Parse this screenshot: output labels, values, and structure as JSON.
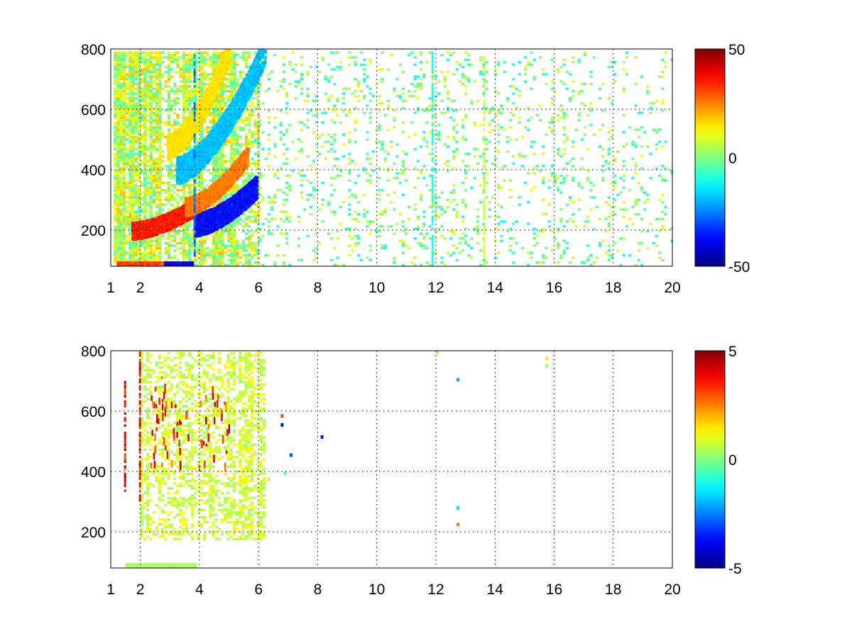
{
  "figure": {
    "background": "#ffffff"
  },
  "chart_data": [
    {
      "type": "heatmap",
      "title": "",
      "xlabel": "",
      "ylabel": "",
      "xlim": [
        1,
        20
      ],
      "ylim": [
        80,
        800
      ],
      "xticks": [
        1,
        2,
        4,
        6,
        8,
        10,
        12,
        14,
        16,
        18,
        20
      ],
      "xtick_labels": [
        "1",
        "2",
        "4",
        "6",
        "8",
        "10",
        "12",
        "14",
        "16",
        "18",
        "20"
      ],
      "yticks": [
        200,
        400,
        600,
        800
      ],
      "ytick_labels": [
        "200",
        "400",
        "600",
        "800"
      ],
      "grid": true,
      "colormap": "jet",
      "clim": [
        -50,
        50
      ],
      "colorbar": {
        "ticks": [
          -50,
          0,
          50
        ],
        "labels": [
          "-50",
          "0",
          "50"
        ],
        "placement": "right"
      },
      "features": [
        {
          "kind": "dense-field",
          "x": [
            1.1,
            6.0
          ],
          "y": [
            80,
            800
          ],
          "value": 6,
          "spread": 14,
          "density": 0.8
        },
        {
          "kind": "ridge-band",
          "x0": 1.7,
          "x1": 4.0,
          "y0": 200,
          "y1": 290,
          "width": 28,
          "value": 42
        },
        {
          "kind": "ridge-band",
          "x0": 3.8,
          "x1": 5.9,
          "y0": 220,
          "y1": 345,
          "width": 38,
          "value": -44
        },
        {
          "kind": "ridge-band",
          "x0": 3.5,
          "x1": 5.6,
          "y0": 280,
          "y1": 450,
          "width": 30,
          "value": 30
        },
        {
          "kind": "ridge-band",
          "x0": 3.2,
          "x1": 6.2,
          "y0": 400,
          "y1": 800,
          "width": 45,
          "value": -22
        },
        {
          "kind": "ridge-band",
          "x0": 2.9,
          "x1": 5.0,
          "y0": 480,
          "y1": 800,
          "width": 40,
          "value": 18
        },
        {
          "kind": "base-strip",
          "x": [
            1.2,
            3.8
          ],
          "y": [
            80,
            98
          ],
          "value": 35
        },
        {
          "kind": "base-strip",
          "x": [
            2.8,
            3.8
          ],
          "y": [
            80,
            98
          ],
          "value": -45
        },
        {
          "kind": "column",
          "x": 3.8,
          "y": [
            120,
            800
          ],
          "value": -30
        },
        {
          "kind": "column",
          "x": 11.85,
          "y": [
            80,
            800
          ],
          "value": -12
        },
        {
          "kind": "column",
          "x": 13.6,
          "y": [
            80,
            800
          ],
          "value": 10
        },
        {
          "kind": "sparse-field",
          "x": [
            6.0,
            20.0
          ],
          "y": [
            80,
            800
          ],
          "value": 0,
          "spread": 12,
          "density": 0.12
        }
      ]
    },
    {
      "type": "heatmap",
      "title": "",
      "xlabel": "",
      "ylabel": "",
      "xlim": [
        1,
        20
      ],
      "ylim": [
        80,
        800
      ],
      "xticks": [
        1,
        2,
        4,
        6,
        8,
        10,
        12,
        14,
        16,
        18,
        20
      ],
      "xtick_labels": [
        "1",
        "2",
        "4",
        "6",
        "8",
        "10",
        "12",
        "14",
        "16",
        "18",
        "20"
      ],
      "yticks": [
        200,
        400,
        600,
        800
      ],
      "ytick_labels": [
        "200",
        "400",
        "600",
        "800"
      ],
      "grid": true,
      "colormap": "jet",
      "clim": [
        -5,
        5
      ],
      "colorbar": {
        "ticks": [
          -5,
          0,
          5
        ],
        "labels": [
          "-5",
          "0",
          "5"
        ],
        "placement": "right"
      },
      "features": [
        {
          "kind": "dense-field",
          "x": [
            2.0,
            6.2
          ],
          "y": [
            180,
            800
          ],
          "value": 0.8,
          "spread": 0.6,
          "density": 0.45
        },
        {
          "kind": "base-strip",
          "x": [
            1.5,
            3.9
          ],
          "y": [
            80,
            98
          ],
          "value": 0.4
        },
        {
          "kind": "hot-spots",
          "x": [
            2.3,
            5.0
          ],
          "y": [
            420,
            720
          ],
          "value": 4.5
        },
        {
          "kind": "column",
          "x": 1.45,
          "y": [
            340,
            720
          ],
          "value": 4.8
        },
        {
          "kind": "column",
          "x": 1.95,
          "y": [
            300,
            800
          ],
          "value": 4.5
        },
        {
          "kind": "points",
          "points": [
            [
              6.75,
              560,
              -3.5
            ],
            [
              6.75,
              590,
              3.0
            ],
            [
              7.05,
              460,
              -3.0
            ],
            [
              8.1,
              520,
              -3.5
            ],
            [
              12.7,
              230,
              2.5
            ],
            [
              12.7,
              285,
              -1.5
            ],
            [
              12.7,
              710,
              -2.0
            ],
            [
              15.7,
              780,
              1.5
            ],
            [
              15.7,
              755,
              0.5
            ],
            [
              12.0,
              800,
              0.5
            ],
            [
              6.3,
              380,
              0.5
            ],
            [
              6.85,
              400,
              -0.5
            ]
          ]
        }
      ]
    }
  ]
}
